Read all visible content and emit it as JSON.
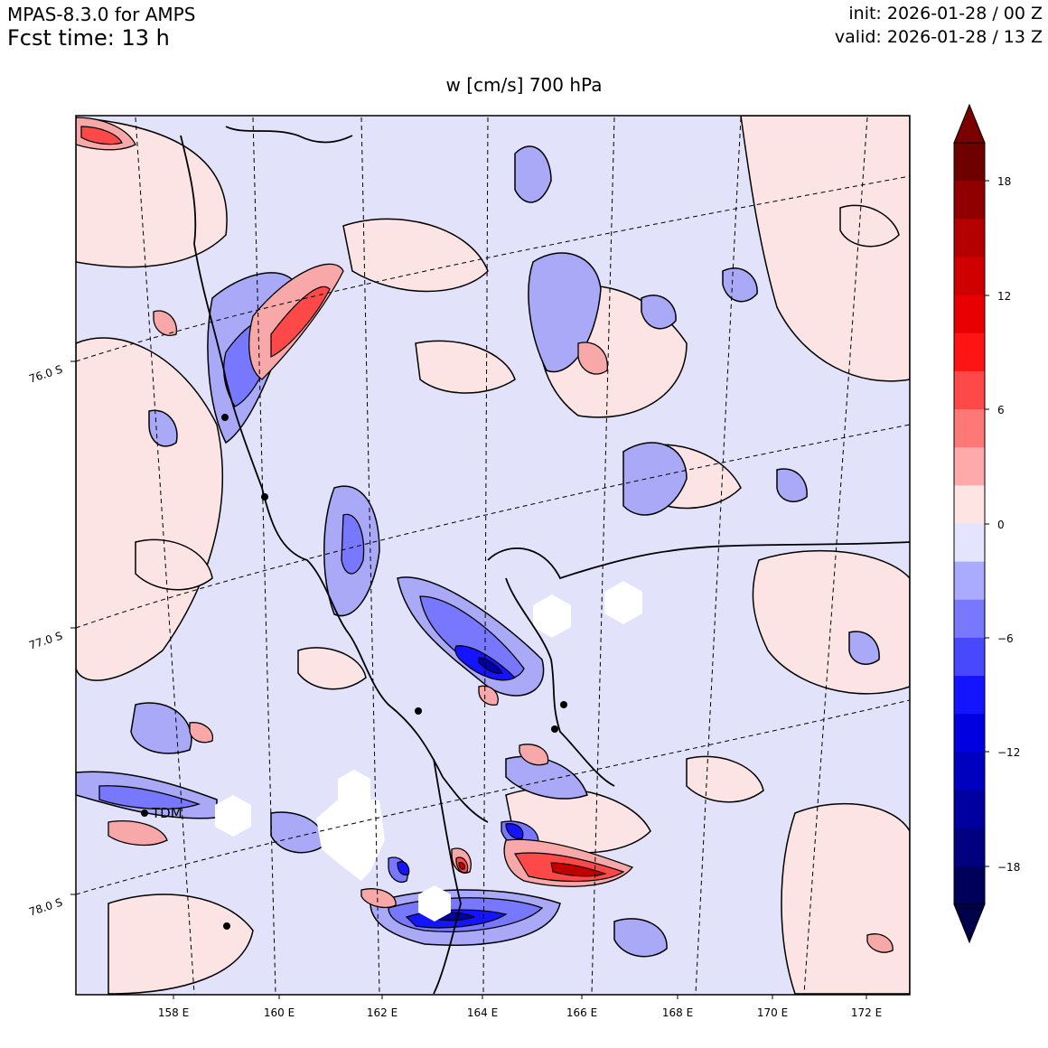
{
  "header": {
    "model": "MPAS-8.3.0 for AMPS",
    "fcst_time": "Fcst time:   13 h",
    "init": "init: 2026-01-28 / 00 Z",
    "valid": "valid: 2026-01-28 / 13 Z"
  },
  "plot": {
    "title": "w [cm/s]    700 hPa",
    "lon_labels": [
      "158 E",
      "160 E",
      "162 E",
      "164 E",
      "166 E",
      "168 E",
      "170 E",
      "172 E"
    ],
    "lat_labels": [
      "76.0 S",
      "77.0 S",
      "78.0 S"
    ],
    "station_label": "TDM"
  },
  "colorbar": {
    "ticks": [
      "18",
      "12",
      "6",
      "0",
      "−6",
      "−12",
      "−18"
    ],
    "levels": [
      -20,
      -18,
      -16,
      -14,
      -12,
      -10,
      -8,
      -6,
      -4,
      -2,
      0,
      2,
      4,
      6,
      8,
      10,
      12,
      14,
      16,
      18,
      20
    ],
    "colors_top_to_bottom": [
      "#6e0000",
      "#900000",
      "#b40000",
      "#d00000",
      "#e80000",
      "#ff1414",
      "#ff4848",
      "#ff7878",
      "#ffaaaa",
      "#ffe4e4",
      "#e4e4ff",
      "#aaaaff",
      "#7878ff",
      "#4848ff",
      "#1414ff",
      "#0000e0",
      "#0000c0",
      "#0000a0",
      "#000080",
      "#00005a"
    ],
    "over_color": "#7a0000",
    "under_color": "#00004a"
  },
  "colors": {
    "neutral_pos": "#fde4e4",
    "neutral_neg": "#e2e2fa",
    "weak_neg": "#a9a9f8",
    "weak_pos": "#f8a8a8"
  }
}
